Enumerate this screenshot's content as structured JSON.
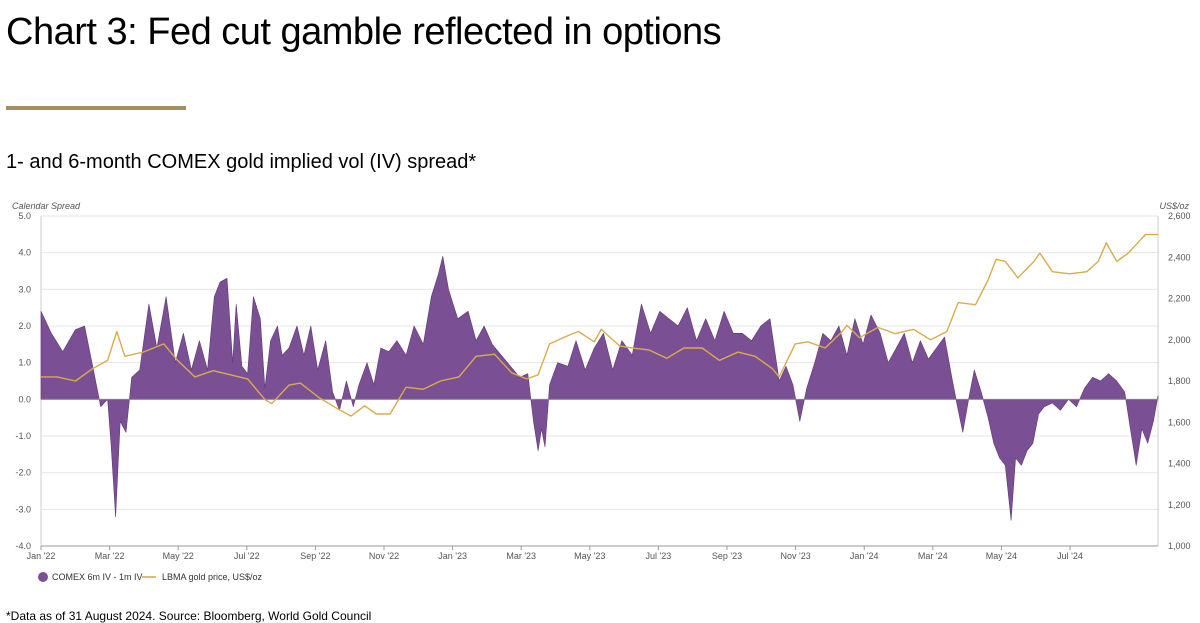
{
  "header": {
    "title": "Chart 3: Fed cut gamble reflected in options",
    "subtitle": "1- and 6-month COMEX gold implied vol (IV) spread*",
    "footnote": "*Data as of 31 August 2024. Source: Bloomberg, World Gold Council"
  },
  "colors": {
    "spread": "#7b4f94",
    "gold": "#d8ac4c",
    "rule": "#a48d5f"
  },
  "chart_data": {
    "type": "area",
    "x_ticks": [
      "Jan '22",
      "Mar '22",
      "May '22",
      "Jul '22",
      "Sep '22",
      "Nov '22",
      "Jan '23",
      "Mar '23",
      "May '23",
      "Jul '23",
      "Sep '23",
      "Nov '23",
      "Jan '24",
      "Mar '24",
      "May '24",
      "Jul '24"
    ],
    "x_range": [
      "2022-01-01",
      "2024-08-31"
    ],
    "left_axis": {
      "label": "Calendar Spread",
      "ylim": [
        -4.0,
        5.0
      ],
      "ticks": [
        "5.0",
        "4.0",
        "3.0",
        "2.0",
        "1.0",
        "0.0",
        "-1.0",
        "-2.0",
        "-3.0",
        "-4.0"
      ]
    },
    "right_axis": {
      "label": "US$/oz",
      "ylim": [
        1000,
        2600
      ],
      "ticks": [
        "2,600",
        "2,400",
        "2,200",
        "2,000",
        "1,800",
        "1,600",
        "1,400",
        "1,200",
        "1,000"
      ]
    },
    "grid": "horizontal",
    "legend_position": "bottom-left",
    "series": [
      {
        "name": "COMEX 6m IV - 1m IV",
        "type": "area",
        "axis": "left",
        "points": [
          [
            "2022-01-01",
            2.4
          ],
          [
            "2022-01-10",
            1.8
          ],
          [
            "2022-01-20",
            1.3
          ],
          [
            "2022-01-31",
            1.9
          ],
          [
            "2022-02-08",
            2.0
          ],
          [
            "2022-02-15",
            0.9
          ],
          [
            "2022-02-22",
            -0.2
          ],
          [
            "2022-02-28",
            0.0
          ],
          [
            "2022-03-03",
            -1.2
          ],
          [
            "2022-03-07",
            -3.2
          ],
          [
            "2022-03-11",
            -0.6
          ],
          [
            "2022-03-16",
            -0.9
          ],
          [
            "2022-03-21",
            0.6
          ],
          [
            "2022-03-28",
            0.8
          ],
          [
            "2022-04-05",
            2.6
          ],
          [
            "2022-04-12",
            1.4
          ],
          [
            "2022-04-20",
            2.8
          ],
          [
            "2022-04-28",
            1.0
          ],
          [
            "2022-05-05",
            1.8
          ],
          [
            "2022-05-12",
            0.8
          ],
          [
            "2022-05-19",
            1.6
          ],
          [
            "2022-05-26",
            0.8
          ],
          [
            "2022-06-01",
            2.8
          ],
          [
            "2022-06-06",
            3.2
          ],
          [
            "2022-06-12",
            3.3
          ],
          [
            "2022-06-17",
            1.0
          ],
          [
            "2022-06-20",
            2.6
          ],
          [
            "2022-06-25",
            0.9
          ],
          [
            "2022-06-30",
            0.7
          ],
          [
            "2022-07-05",
            2.8
          ],
          [
            "2022-07-11",
            2.2
          ],
          [
            "2022-07-15",
            0.3
          ],
          [
            "2022-07-20",
            1.6
          ],
          [
            "2022-07-26",
            2.0
          ],
          [
            "2022-07-30",
            1.2
          ],
          [
            "2022-08-05",
            1.4
          ],
          [
            "2022-08-12",
            2.0
          ],
          [
            "2022-08-18",
            1.2
          ],
          [
            "2022-08-24",
            2.0
          ],
          [
            "2022-08-30",
            0.8
          ],
          [
            "2022-09-06",
            1.6
          ],
          [
            "2022-09-12",
            0.2
          ],
          [
            "2022-09-18",
            -0.3
          ],
          [
            "2022-09-24",
            0.5
          ],
          [
            "2022-09-30",
            -0.2
          ],
          [
            "2022-10-05",
            0.4
          ],
          [
            "2022-10-12",
            1.0
          ],
          [
            "2022-10-18",
            0.4
          ],
          [
            "2022-10-24",
            1.4
          ],
          [
            "2022-10-31",
            1.3
          ],
          [
            "2022-11-07",
            1.6
          ],
          [
            "2022-11-15",
            1.2
          ],
          [
            "2022-11-22",
            2.0
          ],
          [
            "2022-11-30",
            1.5
          ],
          [
            "2022-12-07",
            2.8
          ],
          [
            "2022-12-13",
            3.4
          ],
          [
            "2022-12-17",
            3.9
          ],
          [
            "2022-12-22",
            3.0
          ],
          [
            "2022-12-30",
            2.2
          ],
          [
            "2023-01-08",
            2.4
          ],
          [
            "2023-01-15",
            1.6
          ],
          [
            "2023-01-22",
            2.0
          ],
          [
            "2023-01-29",
            1.5
          ],
          [
            "2023-02-06",
            1.2
          ],
          [
            "2023-02-14",
            0.9
          ],
          [
            "2023-02-22",
            0.6
          ],
          [
            "2023-03-01",
            0.7
          ],
          [
            "2023-03-06",
            -0.6
          ],
          [
            "2023-03-10",
            -1.4
          ],
          [
            "2023-03-13",
            -0.8
          ],
          [
            "2023-03-16",
            -1.3
          ],
          [
            "2023-03-20",
            0.4
          ],
          [
            "2023-03-27",
            1.0
          ],
          [
            "2023-04-05",
            0.9
          ],
          [
            "2023-04-12",
            1.6
          ],
          [
            "2023-04-20",
            0.8
          ],
          [
            "2023-04-28",
            1.4
          ],
          [
            "2023-05-06",
            1.8
          ],
          [
            "2023-05-14",
            0.8
          ],
          [
            "2023-05-22",
            1.6
          ],
          [
            "2023-05-31",
            1.2
          ],
          [
            "2023-06-08",
            2.6
          ],
          [
            "2023-06-16",
            1.8
          ],
          [
            "2023-06-24",
            2.4
          ],
          [
            "2023-07-02",
            2.2
          ],
          [
            "2023-07-10",
            2.0
          ],
          [
            "2023-07-18",
            2.5
          ],
          [
            "2023-07-26",
            1.6
          ],
          [
            "2023-08-03",
            2.2
          ],
          [
            "2023-08-11",
            1.6
          ],
          [
            "2023-08-19",
            2.4
          ],
          [
            "2023-08-27",
            1.8
          ],
          [
            "2023-09-04",
            1.8
          ],
          [
            "2023-09-12",
            1.6
          ],
          [
            "2023-09-20",
            2.0
          ],
          [
            "2023-09-28",
            2.2
          ],
          [
            "2023-10-06",
            0.5
          ],
          [
            "2023-10-12",
            0.9
          ],
          [
            "2023-10-18",
            0.4
          ],
          [
            "2023-10-24",
            -0.6
          ],
          [
            "2023-10-30",
            0.3
          ],
          [
            "2023-11-06",
            1.0
          ],
          [
            "2023-11-13",
            1.8
          ],
          [
            "2023-11-20",
            1.6
          ],
          [
            "2023-11-27",
            2.0
          ],
          [
            "2023-12-04",
            1.2
          ],
          [
            "2023-12-11",
            2.2
          ],
          [
            "2023-12-18",
            1.5
          ],
          [
            "2023-12-25",
            2.3
          ],
          [
            "2024-01-02",
            1.8
          ],
          [
            "2024-01-09",
            1.0
          ],
          [
            "2024-01-16",
            1.4
          ],
          [
            "2024-01-23",
            1.8
          ],
          [
            "2024-01-30",
            1.0
          ],
          [
            "2024-02-06",
            1.6
          ],
          [
            "2024-02-13",
            1.1
          ],
          [
            "2024-02-20",
            1.4
          ],
          [
            "2024-02-27",
            1.7
          ],
          [
            "2024-03-05",
            0.5
          ],
          [
            "2024-03-10",
            -0.3
          ],
          [
            "2024-03-14",
            -0.9
          ],
          [
            "2024-03-19",
            0.0
          ],
          [
            "2024-03-24",
            0.8
          ],
          [
            "2024-03-30",
            0.2
          ],
          [
            "2024-04-05",
            -0.5
          ],
          [
            "2024-04-10",
            -1.2
          ],
          [
            "2024-04-15",
            -1.6
          ],
          [
            "2024-04-20",
            -1.8
          ],
          [
            "2024-04-25",
            -3.3
          ],
          [
            "2024-04-29",
            -1.6
          ],
          [
            "2024-05-04",
            -1.8
          ],
          [
            "2024-05-09",
            -1.4
          ],
          [
            "2024-05-14",
            -1.2
          ],
          [
            "2024-05-19",
            -0.4
          ],
          [
            "2024-05-24",
            -0.2
          ],
          [
            "2024-05-31",
            -0.1
          ],
          [
            "2024-06-07",
            -0.3
          ],
          [
            "2024-06-14",
            0.0
          ],
          [
            "2024-06-21",
            -0.2
          ],
          [
            "2024-06-28",
            0.3
          ],
          [
            "2024-07-05",
            0.6
          ],
          [
            "2024-07-12",
            0.5
          ],
          [
            "2024-07-19",
            0.7
          ],
          [
            "2024-07-26",
            0.5
          ],
          [
            "2024-08-02",
            0.2
          ],
          [
            "2024-08-07",
            -0.8
          ],
          [
            "2024-08-12",
            -1.8
          ],
          [
            "2024-08-17",
            -0.8
          ],
          [
            "2024-08-22",
            -1.2
          ],
          [
            "2024-08-27",
            -0.6
          ],
          [
            "2024-08-31",
            0.1
          ]
        ]
      },
      {
        "name": "LBMA gold price, US$/oz",
        "type": "line",
        "axis": "right",
        "points": [
          [
            "2022-01-01",
            1820
          ],
          [
            "2022-01-15",
            1820
          ],
          [
            "2022-01-31",
            1800
          ],
          [
            "2022-02-15",
            1860
          ],
          [
            "2022-02-28",
            1900
          ],
          [
            "2022-03-08",
            2040
          ],
          [
            "2022-03-15",
            1920
          ],
          [
            "2022-03-31",
            1940
          ],
          [
            "2022-04-18",
            1980
          ],
          [
            "2022-04-30",
            1900
          ],
          [
            "2022-05-15",
            1820
          ],
          [
            "2022-05-31",
            1850
          ],
          [
            "2022-06-15",
            1830
          ],
          [
            "2022-06-30",
            1810
          ],
          [
            "2022-07-15",
            1710
          ],
          [
            "2022-07-21",
            1690
          ],
          [
            "2022-08-05",
            1780
          ],
          [
            "2022-08-15",
            1790
          ],
          [
            "2022-08-31",
            1720
          ],
          [
            "2022-09-15",
            1670
          ],
          [
            "2022-09-28",
            1630
          ],
          [
            "2022-10-10",
            1680
          ],
          [
            "2022-10-20",
            1640
          ],
          [
            "2022-11-01",
            1640
          ],
          [
            "2022-11-15",
            1770
          ],
          [
            "2022-11-30",
            1760
          ],
          [
            "2022-12-15",
            1800
          ],
          [
            "2022-12-31",
            1820
          ],
          [
            "2023-01-15",
            1920
          ],
          [
            "2023-01-31",
            1930
          ],
          [
            "2023-02-15",
            1840
          ],
          [
            "2023-02-28",
            1810
          ],
          [
            "2023-03-10",
            1830
          ],
          [
            "2023-03-20",
            1980
          ],
          [
            "2023-04-05",
            2020
          ],
          [
            "2023-04-14",
            2040
          ],
          [
            "2023-04-28",
            1990
          ],
          [
            "2023-05-04",
            2050
          ],
          [
            "2023-05-20",
            1970
          ],
          [
            "2023-05-31",
            1960
          ],
          [
            "2023-06-15",
            1950
          ],
          [
            "2023-06-30",
            1910
          ],
          [
            "2023-07-15",
            1960
          ],
          [
            "2023-07-31",
            1960
          ],
          [
            "2023-08-15",
            1900
          ],
          [
            "2023-08-31",
            1940
          ],
          [
            "2023-09-15",
            1920
          ],
          [
            "2023-09-30",
            1860
          ],
          [
            "2023-10-06",
            1820
          ],
          [
            "2023-10-20",
            1980
          ],
          [
            "2023-10-31",
            1990
          ],
          [
            "2023-11-15",
            1960
          ],
          [
            "2023-11-30",
            2040
          ],
          [
            "2023-12-04",
            2070
          ],
          [
            "2023-12-15",
            2010
          ],
          [
            "2023-12-31",
            2060
          ],
          [
            "2024-01-15",
            2030
          ],
          [
            "2024-01-31",
            2050
          ],
          [
            "2024-02-15",
            2000
          ],
          [
            "2024-02-29",
            2040
          ],
          [
            "2024-03-10",
            2180
          ],
          [
            "2024-03-25",
            2170
          ],
          [
            "2024-04-05",
            2290
          ],
          [
            "2024-04-12",
            2390
          ],
          [
            "2024-04-20",
            2380
          ],
          [
            "2024-05-01",
            2300
          ],
          [
            "2024-05-15",
            2380
          ],
          [
            "2024-05-20",
            2420
          ],
          [
            "2024-05-31",
            2330
          ],
          [
            "2024-06-15",
            2320
          ],
          [
            "2024-06-30",
            2330
          ],
          [
            "2024-07-10",
            2380
          ],
          [
            "2024-07-17",
            2470
          ],
          [
            "2024-07-26",
            2380
          ],
          [
            "2024-08-05",
            2420
          ],
          [
            "2024-08-15",
            2480
          ],
          [
            "2024-08-20",
            2510
          ],
          [
            "2024-08-31",
            2510
          ]
        ]
      }
    ]
  }
}
